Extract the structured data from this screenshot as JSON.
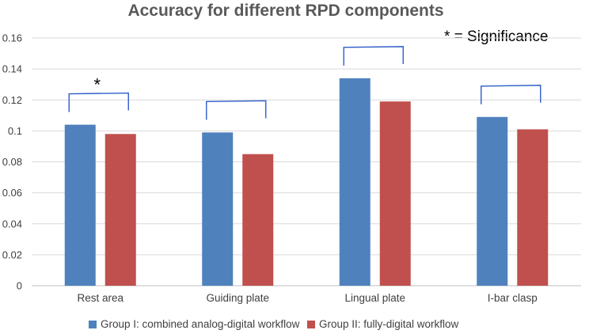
{
  "chart_data": {
    "type": "bar",
    "title": "Accuracy for different RPD components",
    "categories": [
      "Rest area",
      "Guiding plate",
      "Lingual plate",
      "I-bar clasp"
    ],
    "series": [
      {
        "name": "Group I: combined analog-digital workflow",
        "color": "#4f81bd",
        "values": [
          0.104,
          0.099,
          0.134,
          0.109
        ]
      },
      {
        "name": "Group II: fully-digital workflow",
        "color": "#c0504d",
        "values": [
          0.098,
          0.085,
          0.119,
          0.101
        ]
      }
    ],
    "ylim": [
      0,
      0.16
    ],
    "yticks": [
      "0",
      "0.02",
      "0.04",
      "0.06",
      "0.08",
      "0.1",
      "0.12",
      "0.14",
      "0.16"
    ],
    "grid": true,
    "legend_position": "bottom",
    "significance_note": "* = Significance",
    "significance_marker": "*",
    "significant_categories": [
      "Rest area"
    ]
  }
}
